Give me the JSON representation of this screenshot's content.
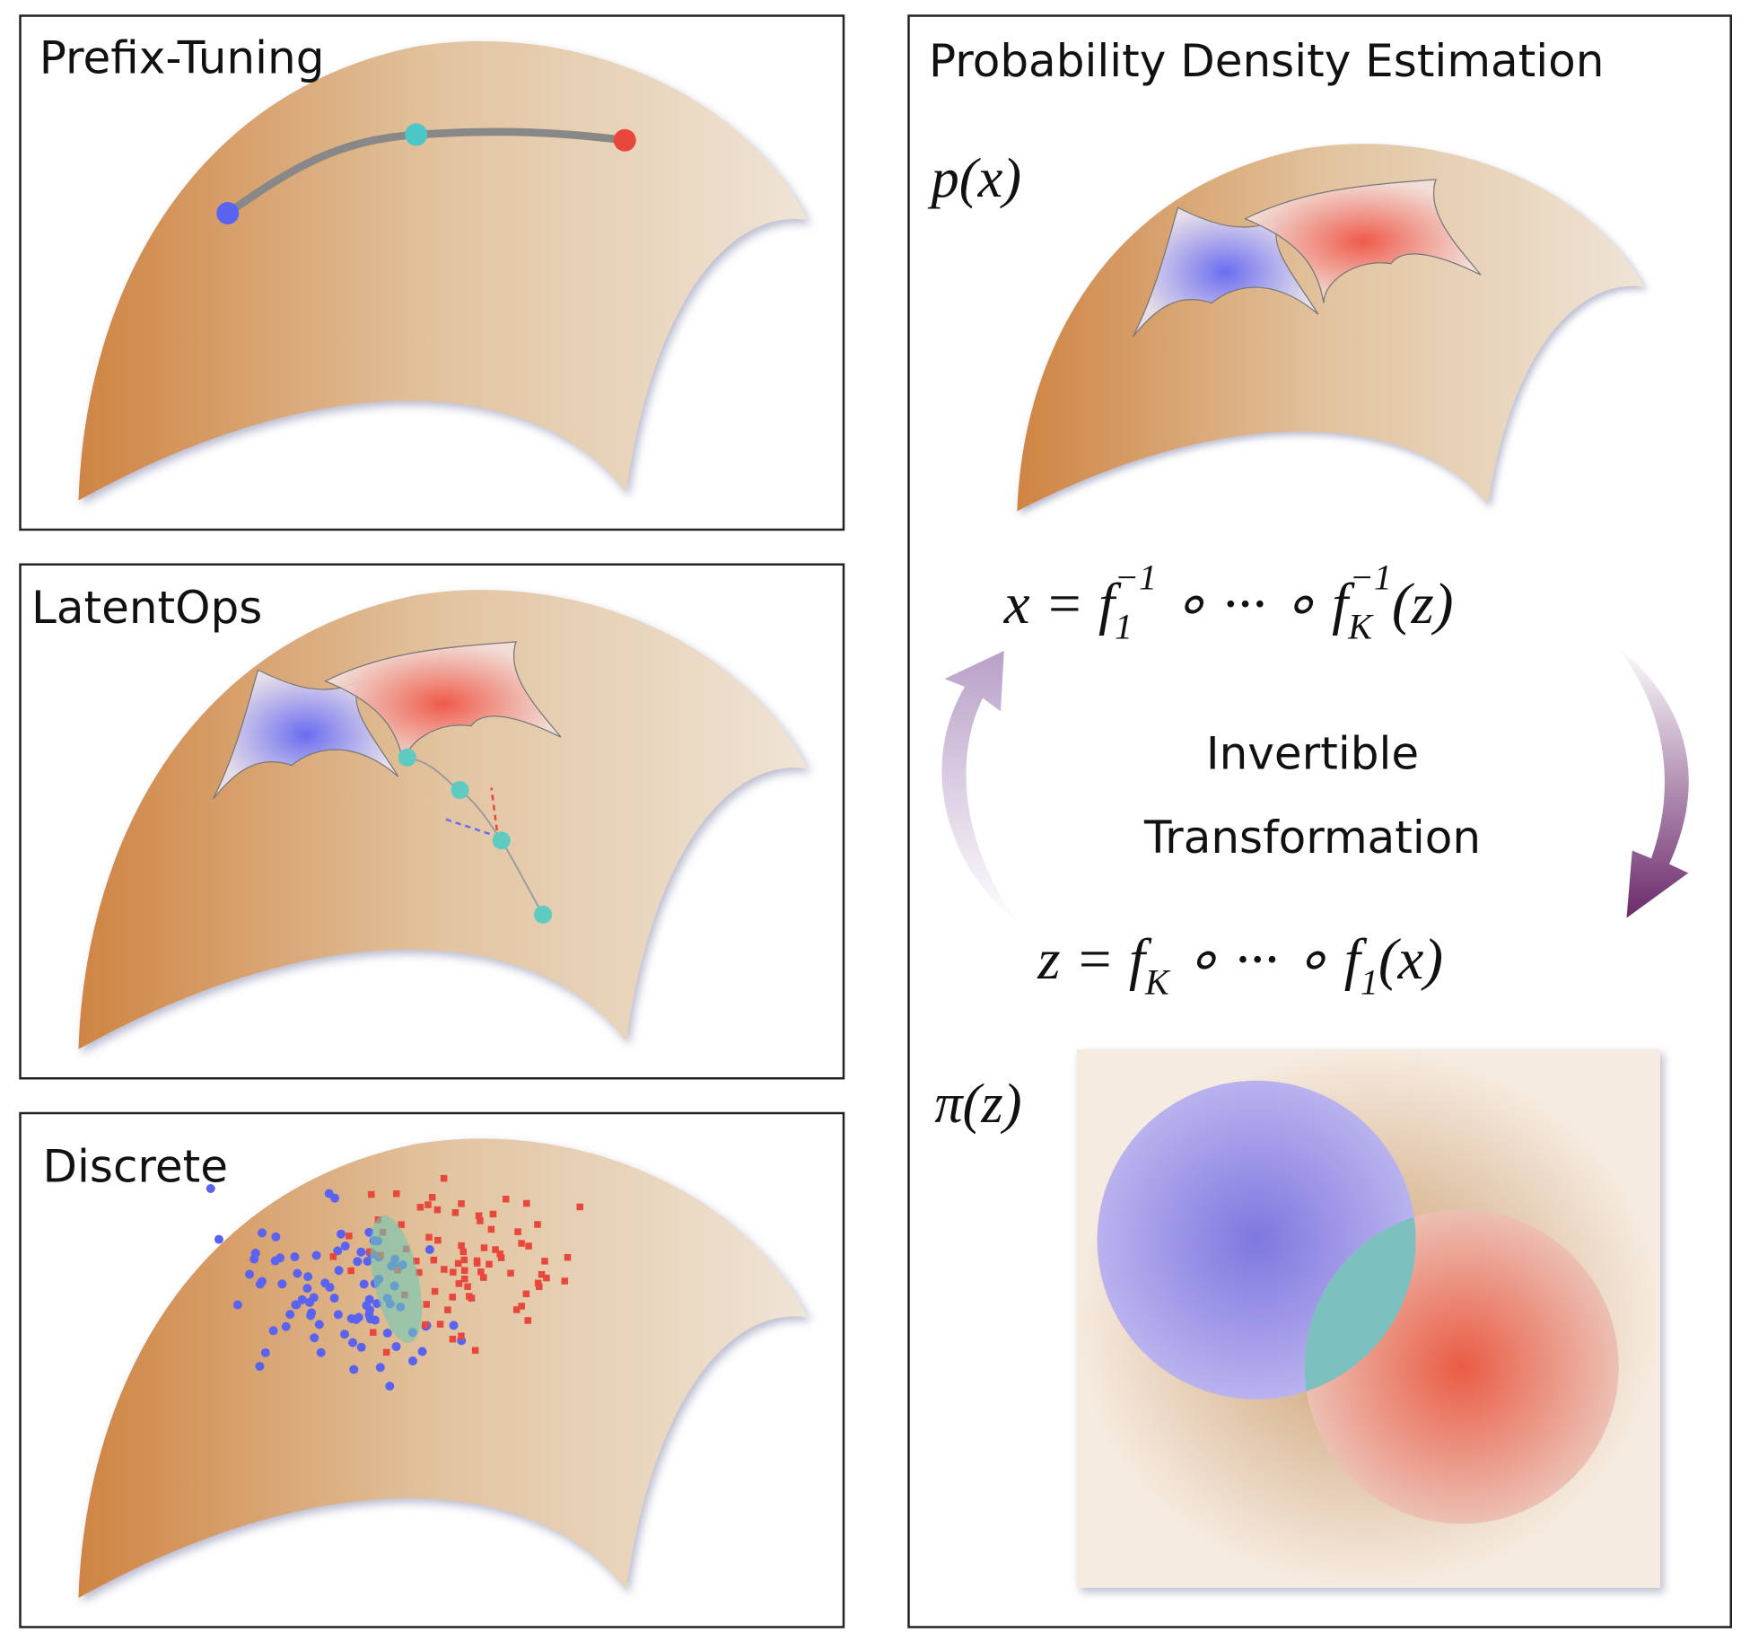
{
  "panels": [
    {
      "title": "Prefix-Tuning"
    },
    {
      "title": "LatentOps"
    },
    {
      "title": "Discrete"
    }
  ],
  "density_panel": {
    "title": "Probability Density Estimation",
    "density_label": "p(x)",
    "inverse_formula": [
      "x = f",
      "1",
      "−1",
      " ∘ ··· ∘ f",
      "K",
      "−1",
      "(z)"
    ],
    "transform_label": [
      "Invertible",
      "Transformation"
    ],
    "forward_formula": [
      "z = f",
      "K",
      " ∘ ··· ∘ f",
      "1",
      "(x)"
    ],
    "prior_label": "π(z)"
  }
}
